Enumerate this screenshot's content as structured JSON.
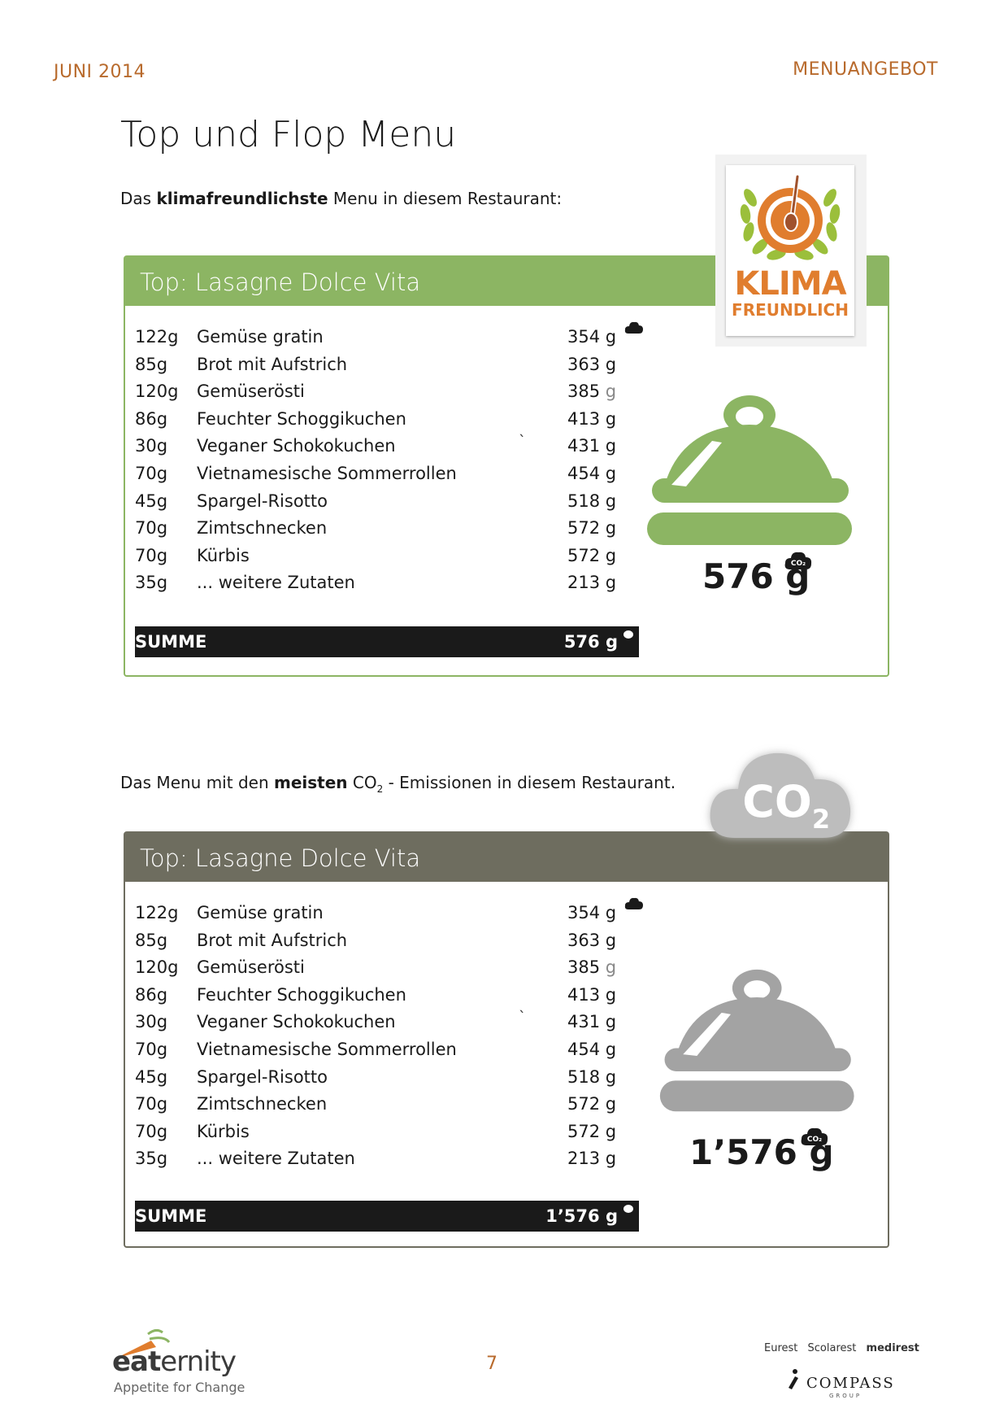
{
  "header": {
    "left": "JUNI 2014",
    "right": "MENUANGEBOT"
  },
  "title": "Top und Flop Menu",
  "top_section": {
    "intro_before": "Das ",
    "intro_bold": "klimafreundlichste",
    "intro_after": " Menu in diesem Restaurant:",
    "panel_title": "Top: Lasagne Dolce Vita",
    "rows": [
      {
        "weight": "122g",
        "name": "Gemüse gratin",
        "value": "354",
        "unit": "g"
      },
      {
        "weight": "85g",
        "name": "Brot mit Aufstrich",
        "value": "363",
        "unit": "g"
      },
      {
        "weight": "120g",
        "name": "Gemüserösti",
        "value": "385",
        "unit": "g"
      },
      {
        "weight": "86g",
        "name": "Feuchter Schoggikuchen",
        "value": "413",
        "unit": "g"
      },
      {
        "weight": "30g",
        "name": "Veganer Schokokuchen",
        "value": "431",
        "unit": "g"
      },
      {
        "weight": "70g",
        "name": "Vietnamesische Sommerrollen",
        "value": "454",
        "unit": "g"
      },
      {
        "weight": "45g",
        "name": "Spargel-Risotto",
        "value": "518",
        "unit": "g"
      },
      {
        "weight": "70g",
        "name": "Zimtschnecken",
        "value": "572",
        "unit": "g"
      },
      {
        "weight": "70g",
        "name": "Kürbis",
        "value": "572",
        "unit": "g"
      },
      {
        "weight": "35g",
        "name": "... weitere Zutaten",
        "value": "213",
        "unit": "g"
      }
    ],
    "tick_mark": "`",
    "sum_label": "SUMME",
    "sum_value": "576 g",
    "big_value": "576 g",
    "badge_line1": "KLIMA",
    "badge_line2": "FREUNDLICH",
    "cloche_color": "#8cb563"
  },
  "flop_section": {
    "intro_before": "Das Menu mit den ",
    "intro_bold": "meisten",
    "intro_co": " CO",
    "intro_sub": "2",
    "intro_after": " - Emissionen in diesem Restaurant.",
    "panel_title": "Top: Lasagne Dolce Vita",
    "rows": [
      {
        "weight": "122g",
        "name": "Gemüse gratin",
        "value": "354",
        "unit": "g"
      },
      {
        "weight": "85g",
        "name": "Brot mit Aufstrich",
        "value": "363",
        "unit": "g"
      },
      {
        "weight": "120g",
        "name": "Gemüserösti",
        "value": "385",
        "unit": "g"
      },
      {
        "weight": "86g",
        "name": "Feuchter Schoggikuchen",
        "value": "413",
        "unit": "g"
      },
      {
        "weight": "30g",
        "name": "Veganer Schokokuchen",
        "value": "431",
        "unit": "g"
      },
      {
        "weight": "70g",
        "name": "Vietnamesische Sommerrollen",
        "value": "454",
        "unit": "g"
      },
      {
        "weight": "45g",
        "name": "Spargel-Risotto",
        "value": "518",
        "unit": "g"
      },
      {
        "weight": "70g",
        "name": "Zimtschnecken",
        "value": "572",
        "unit": "g"
      },
      {
        "weight": "70g",
        "name": "Kürbis",
        "value": "572",
        "unit": "g"
      },
      {
        "weight": "35g",
        "name": "... weitere Zutaten",
        "value": "213",
        "unit": "g"
      }
    ],
    "tick_mark": "`",
    "sum_label": "SUMME",
    "sum_value": "1’576 g",
    "big_value": "1’576 g",
    "cloud_text": "CO",
    "cloud_sub": "2",
    "cloche_color": "#a3a3a3"
  },
  "co2_mini_label": "CO₂",
  "footer": {
    "page_number": "7",
    "brand_left_a": "eat",
    "brand_left_b": "ernity",
    "brand_left_sub": "Appetite for Change",
    "brands_right": [
      "Eurest",
      "Scolarest",
      "medirest"
    ],
    "compass": "COMPASS",
    "compass_sub": "GROUP"
  }
}
